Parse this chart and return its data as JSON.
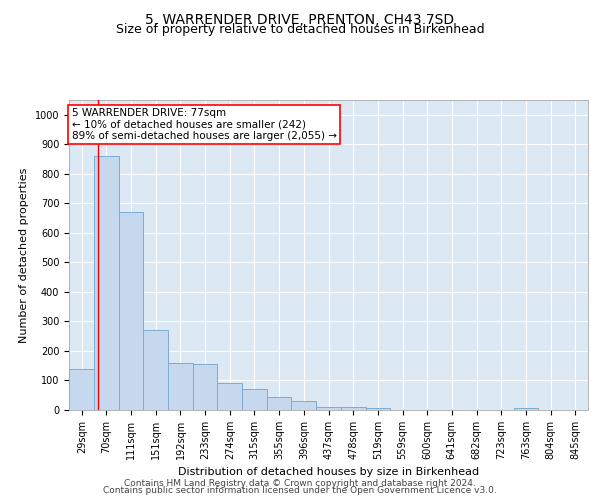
{
  "title": "5, WARRENDER DRIVE, PRENTON, CH43 7SD",
  "subtitle": "Size of property relative to detached houses in Birkenhead",
  "xlabel": "Distribution of detached houses by size in Birkenhead",
  "ylabel": "Number of detached properties",
  "footer_line1": "Contains HM Land Registry data © Crown copyright and database right 2024.",
  "footer_line2": "Contains public sector information licensed under the Open Government Licence v3.0.",
  "categories": [
    "29sqm",
    "70sqm",
    "111sqm",
    "151sqm",
    "192sqm",
    "233sqm",
    "274sqm",
    "315sqm",
    "355sqm",
    "396sqm",
    "437sqm",
    "478sqm",
    "519sqm",
    "559sqm",
    "600sqm",
    "641sqm",
    "682sqm",
    "723sqm",
    "763sqm",
    "804sqm",
    "845sqm"
  ],
  "values": [
    140,
    860,
    670,
    270,
    160,
    155,
    90,
    70,
    45,
    30,
    10,
    10,
    7,
    0,
    0,
    0,
    0,
    0,
    8,
    0,
    0
  ],
  "bar_color": "#c5d8ed",
  "bar_edge_color": "#7aadd4",
  "background_color": "#dce9f5",
  "annotation_text": "5 WARRENDER DRIVE: 77sqm\n← 10% of detached houses are smaller (242)\n89% of semi-detached houses are larger (2,055) →",
  "annotation_box_color": "white",
  "annotation_box_edge": "red",
  "vline_x": 77,
  "vline_color": "red",
  "ylim": [
    0,
    1050
  ],
  "bin_width": 41,
  "title_fontsize": 10,
  "subtitle_fontsize": 9,
  "label_fontsize": 8,
  "tick_fontsize": 7,
  "footer_fontsize": 6.5,
  "annotation_fontsize": 7.5
}
